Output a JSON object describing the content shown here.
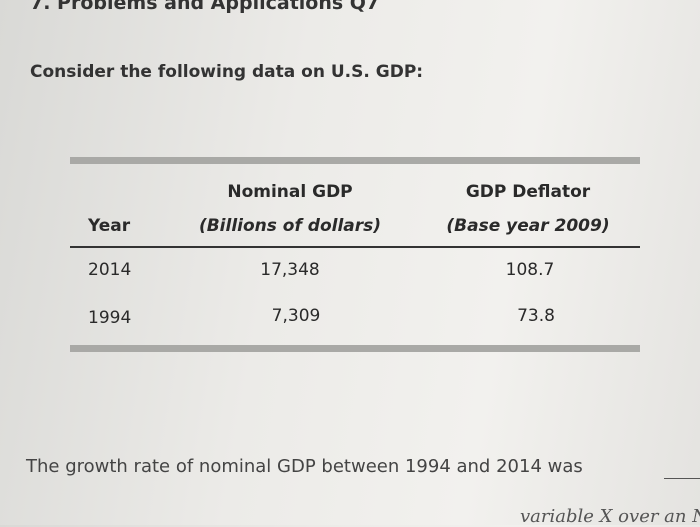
{
  "header": {
    "title": "7. Problems and Applications Q7"
  },
  "intro": "Consider the following data on U.S. GDP:",
  "table": {
    "header_top": [
      "Nominal GDP",
      "GDP Deflator"
    ],
    "header_bottom": [
      "Year",
      "(Billions of dollars)",
      "(Base year 2009)"
    ],
    "rows": [
      [
        "2014",
        "17,348",
        "108.7"
      ],
      [
        "1994",
        "7,309",
        "73.8"
      ]
    ]
  },
  "question": "The growth rate of nominal GDP between 1994 and 2014 was",
  "footer_fragment": "variable X over an N-"
}
